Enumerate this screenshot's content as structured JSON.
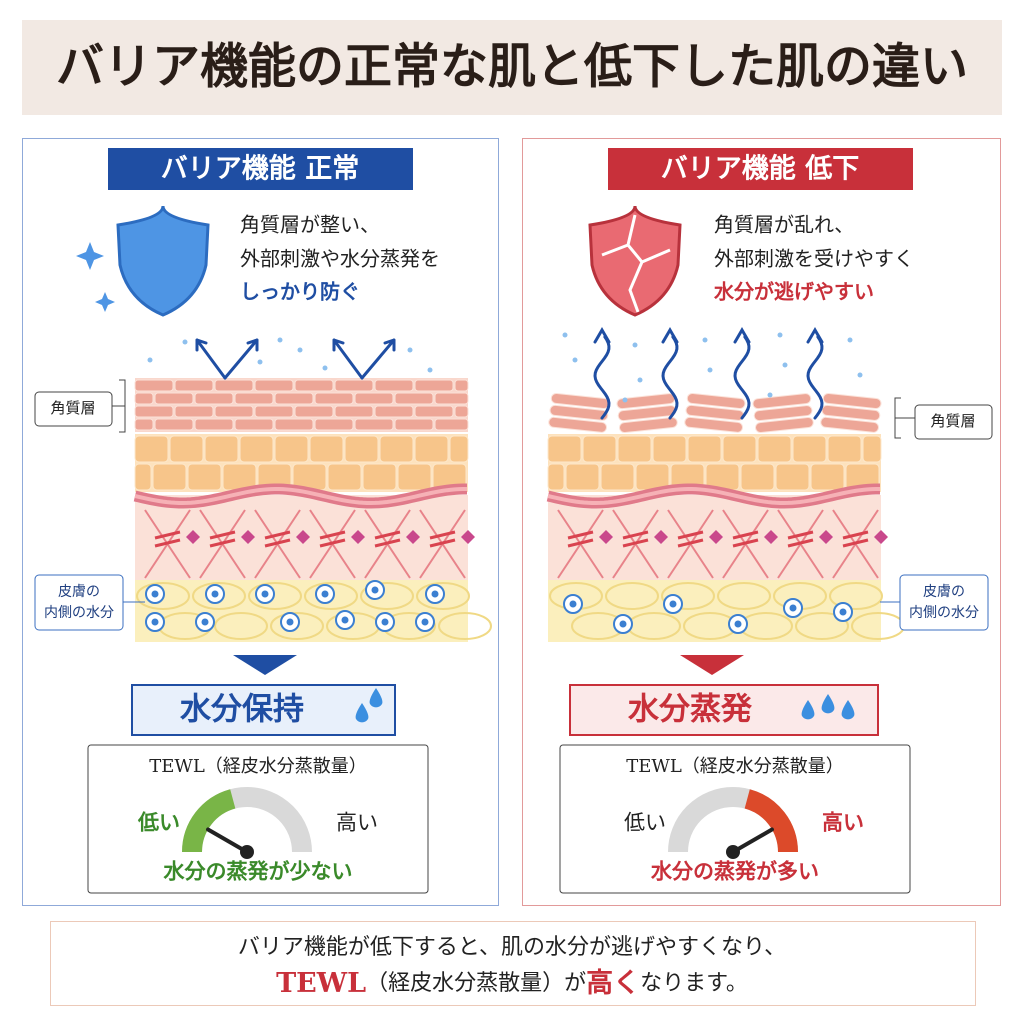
{
  "header": {
    "title": "バリア機能の正常な肌と低下した肌の違い"
  },
  "panels": [
    {
      "badge": "バリア機能 正常",
      "description": [
        "角質層が整い、",
        "外部刺激や水分蒸発を",
        "しっかり防ぐ"
      ],
      "layer_label": "角質層",
      "moisture_label": [
        "皮膚の",
        "内側の水分"
      ],
      "result": "水分保持",
      "tewl": {
        "title": "TEWL（経皮水分蒸散量）",
        "low": "低い",
        "high": "高い",
        "caption": "水分の蒸発が少ない"
      }
    },
    {
      "badge": "バリア機能 低下",
      "description": [
        "角質層が乱れ、",
        "外部刺激を受けやすく",
        "水分が逃げやすい"
      ],
      "layer_label": "角質層",
      "moisture_label": [
        "皮膚の",
        "内側の水分"
      ],
      "result": "水分蒸発",
      "tewl": {
        "title": "TEWL（経皮水分蒸散量）",
        "low": "低い",
        "high": "高い",
        "caption": "水分の蒸発が多い"
      }
    }
  ],
  "footer": {
    "line1": "バリア機能が低下すると、肌の水分が逃げやすくなり、",
    "line2": [
      "TEWL",
      "（経皮水分蒸散量）が",
      "高く",
      "なります。"
    ]
  }
}
